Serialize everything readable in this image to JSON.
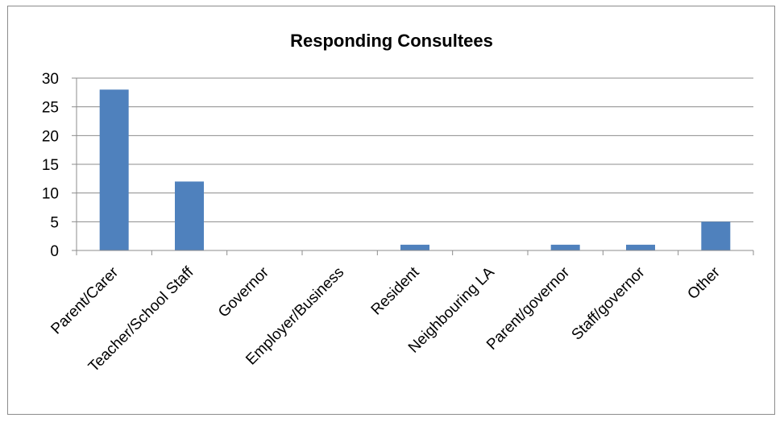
{
  "chart_data": {
    "type": "bar",
    "title": "Responding Consultees",
    "categories": [
      "Parent/Carer",
      "Teacher/School Staff",
      "Governor",
      "Employer/Business",
      "Resident",
      "Neighbouring LA",
      "Parent/governor",
      "Staff/governor",
      "Other"
    ],
    "values": [
      28,
      12,
      0,
      0,
      1,
      0,
      1,
      1,
      5
    ],
    "ylim": [
      0,
      30
    ],
    "yticks": [
      0,
      5,
      10,
      15,
      20,
      25,
      30
    ],
    "grid": true,
    "legend": "none",
    "bar_color": "#4f81bd"
  }
}
